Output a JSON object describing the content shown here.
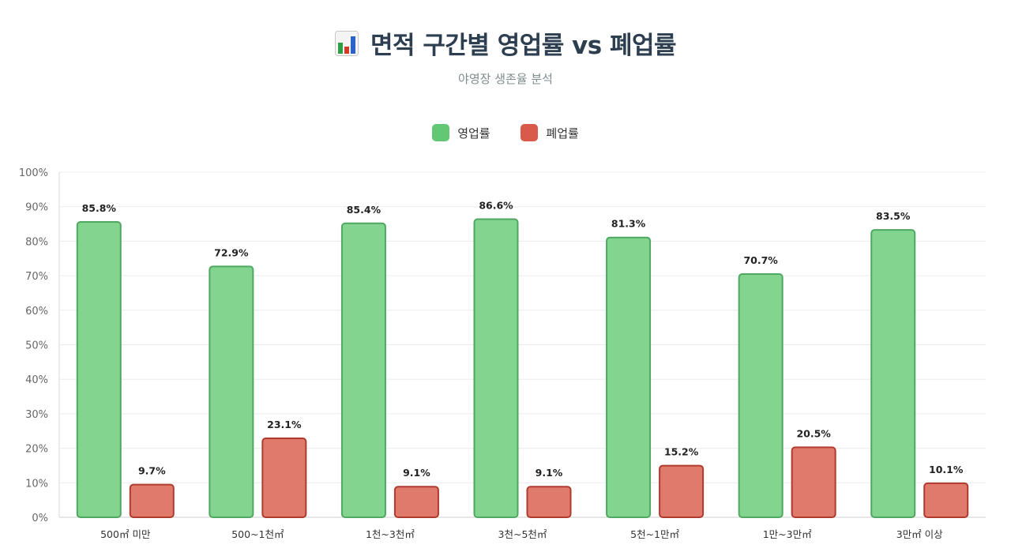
{
  "header": {
    "title": "면적 구간별 영업률 vs 폐업률",
    "subtitle": "야영장 생존율 분석"
  },
  "colors": {
    "open_fill": "#82d48f",
    "open_stroke": "#4fa861",
    "open_legend": "#62c874",
    "closed_fill": "#e07a6c",
    "closed_stroke": "#b03a2e",
    "closed_legend": "#d95a4a",
    "title": "#2c3e50",
    "grid": "#ececec",
    "tick": "#666666"
  },
  "chart_data": {
    "type": "bar",
    "categories": [
      "500㎡ 미만",
      "500~1천㎡",
      "1천~3천㎡",
      "3천~5천㎡",
      "5천~1만㎡",
      "1만~3만㎡",
      "3만㎡ 이상"
    ],
    "series": [
      {
        "name": "영업률",
        "values": [
          85.8,
          72.9,
          85.4,
          86.6,
          81.3,
          70.7,
          83.5
        ]
      },
      {
        "name": "폐업률",
        "values": [
          9.7,
          23.1,
          9.1,
          9.1,
          15.2,
          20.5,
          10.1
        ]
      }
    ],
    "value_labels": [
      [
        "85.8%",
        "72.9%",
        "85.4%",
        "86.6%",
        "81.3%",
        "70.7%",
        "83.5%"
      ],
      [
        "9.7%",
        "23.1%",
        "9.1%",
        "9.1%",
        "15.2%",
        "20.5%",
        "10.1%"
      ]
    ],
    "y_ticks": [
      0,
      10,
      20,
      30,
      40,
      50,
      60,
      70,
      80,
      90,
      100
    ],
    "y_tick_labels": [
      "0%",
      "10%",
      "20%",
      "30%",
      "40%",
      "50%",
      "60%",
      "70%",
      "80%",
      "90%",
      "100%"
    ],
    "ylim": [
      0,
      100
    ],
    "grid": true,
    "legend_position": "top-center"
  }
}
